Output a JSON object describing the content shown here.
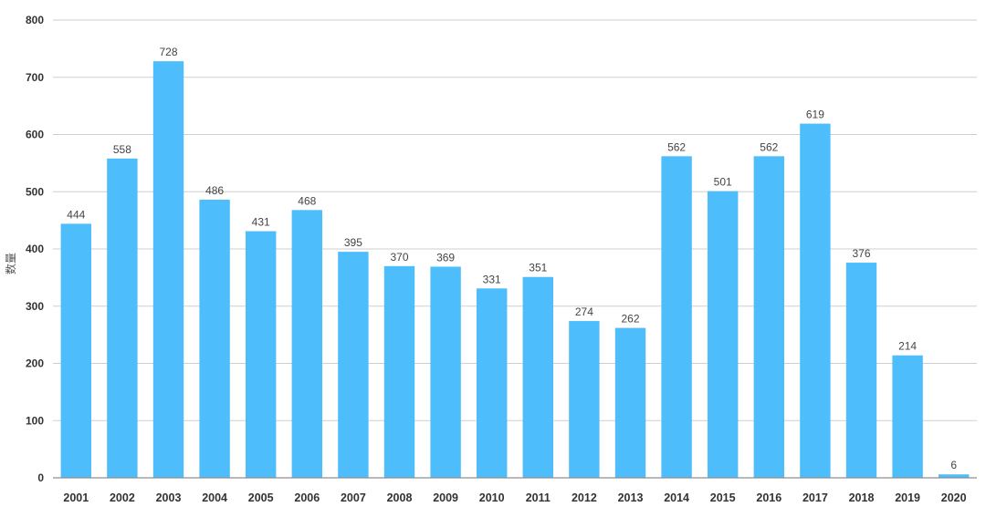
{
  "chart_data": {
    "type": "bar",
    "title": "",
    "xlabel": "",
    "ylabel": "数量",
    "ylim": [
      0,
      800
    ],
    "yticks": [
      0,
      100,
      200,
      300,
      400,
      500,
      600,
      700,
      800
    ],
    "grid": true,
    "legend": "none",
    "bar_color": "#4dbdfb",
    "categories": [
      "2001",
      "2002",
      "2003",
      "2004",
      "2005",
      "2006",
      "2007",
      "2008",
      "2009",
      "2010",
      "2011",
      "2012",
      "2013",
      "2014",
      "2015",
      "2016",
      "2017",
      "2018",
      "2019",
      "2020"
    ],
    "values": [
      444,
      558,
      728,
      486,
      431,
      468,
      395,
      370,
      369,
      331,
      351,
      274,
      262,
      562,
      501,
      562,
      619,
      376,
      214,
      6
    ]
  }
}
